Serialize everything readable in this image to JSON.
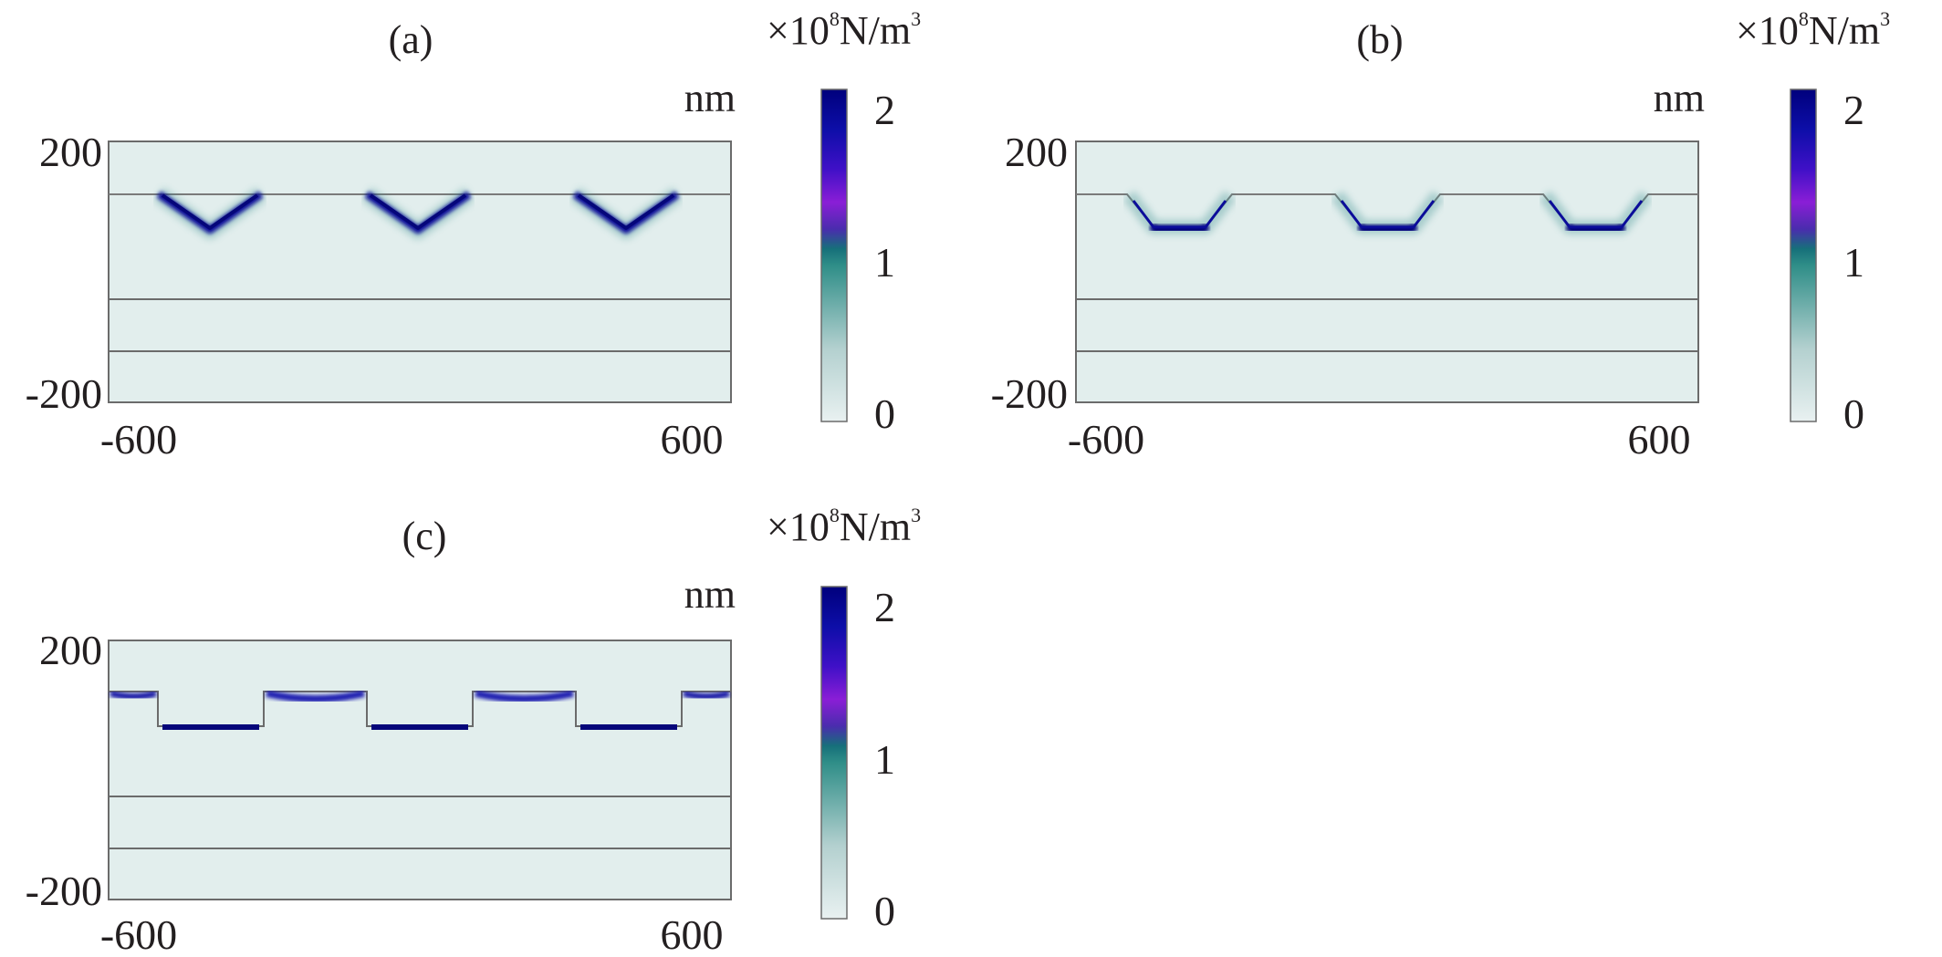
{
  "figure": {
    "panels": [
      {
        "label": "(a)",
        "groove_shape": "v-groove",
        "unit_label": "nm",
        "y_ticks": [
          "200",
          "-200"
        ],
        "x_ticks": [
          "-600",
          "600"
        ],
        "colorbar": {
          "prefix": "×10",
          "exponent": "8",
          "unit": "N/m",
          "unit_sup": "3",
          "ticks": [
            "2",
            "1",
            "0"
          ]
        }
      },
      {
        "label": "(b)",
        "groove_shape": "trapezoid-groove",
        "unit_label": "nm",
        "y_ticks": [
          "200",
          "-200"
        ],
        "x_ticks": [
          "-600",
          "600"
        ],
        "colorbar": {
          "prefix": "×10",
          "exponent": "8",
          "unit": "N/m",
          "unit_sup": "3",
          "ticks": [
            "2",
            "1",
            "0"
          ]
        }
      },
      {
        "label": "(c)",
        "groove_shape": "rectangular-groove",
        "unit_label": "nm",
        "y_ticks": [
          "200",
          "-200"
        ],
        "x_ticks": [
          "-600",
          "600"
        ],
        "colorbar": {
          "prefix": "×10",
          "exponent": "8",
          "unit": "N/m",
          "unit_sup": "3",
          "ticks": [
            "2",
            "1",
            "0"
          ]
        }
      }
    ],
    "colormap": {
      "low_color": "#e4efef",
      "mid_color": "#2a8a85",
      "high_violet": "#8a1ed6",
      "high_color": "#00007c",
      "background": "#e2eeed"
    }
  }
}
